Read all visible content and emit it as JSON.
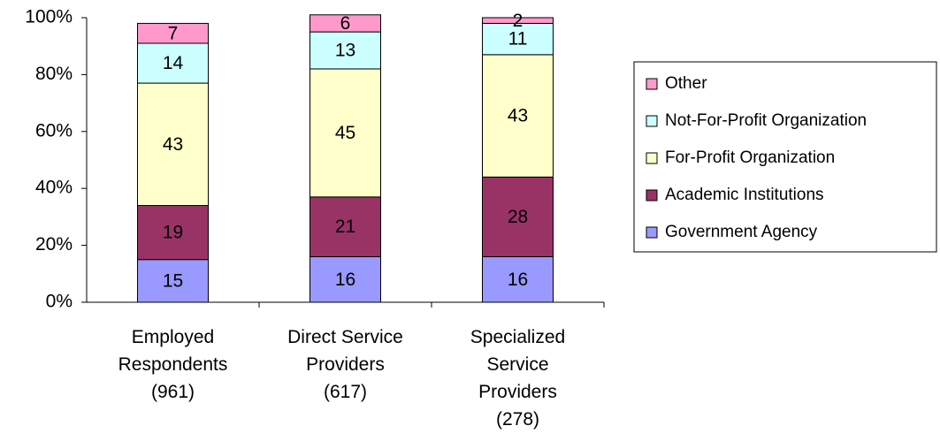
{
  "chart_data": {
    "type": "stacked_bar",
    "categories": [
      [
        "Employed",
        "Respondents",
        "(961)"
      ],
      [
        "Direct Service",
        "Providers",
        "(617)"
      ],
      [
        "Specialized",
        "Service",
        "Providers",
        "(278)"
      ]
    ],
    "series": [
      {
        "name": "Government Agency",
        "color": "#9999ff",
        "values": [
          15,
          16,
          16
        ]
      },
      {
        "name": "Academic Institutions",
        "color": "#993366",
        "values": [
          19,
          21,
          28
        ]
      },
      {
        "name": "For-Profit Organization",
        "color": "#ffffcc",
        "values": [
          43,
          45,
          43
        ]
      },
      {
        "name": "Not-For-Profit Organization",
        "color": "#ccffff",
        "values": [
          14,
          13,
          11
        ]
      },
      {
        "name": "Other",
        "color": "#ff99cc",
        "values": [
          7,
          6,
          2
        ]
      }
    ],
    "ylim": [
      0,
      100
    ],
    "yticks": [
      {
        "value": 0,
        "label": "0%"
      },
      {
        "value": 20,
        "label": "20%"
      },
      {
        "value": 40,
        "label": "40%"
      },
      {
        "value": 60,
        "label": "60%"
      },
      {
        "value": 80,
        "label": "80%"
      },
      {
        "value": 100,
        "label": "100%"
      }
    ],
    "legend": "right"
  }
}
